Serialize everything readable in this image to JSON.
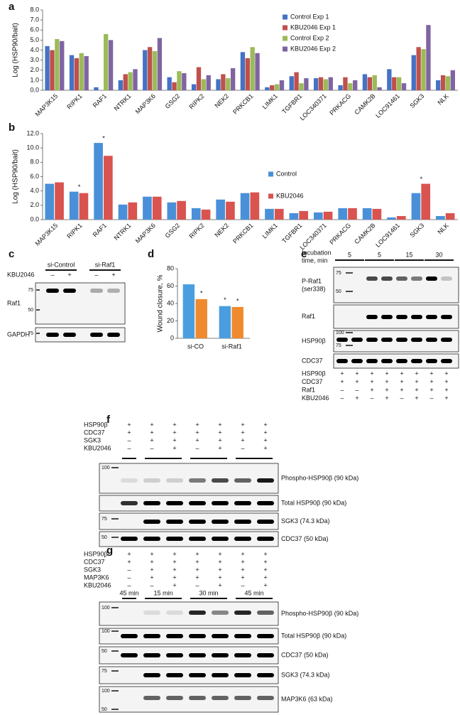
{
  "chart_data": [
    {
      "type": "bar",
      "label": "a",
      "ylabel": "Log (HSP90/bait)",
      "categories": [
        "MAP3K15",
        "RIPK1",
        "RAF1",
        "NTRK1",
        "MAP3K6",
        "GSG2",
        "RIPK2",
        "NEK2",
        "PRKCB1",
        "LIMK1",
        "TGFBR1",
        "LOC340371",
        "PRKACG",
        "CAMK2B",
        "LOC91461",
        "SGK3",
        "NLK"
      ],
      "series": [
        {
          "name": "Control Exp 1",
          "color": "#4472c4",
          "values": [
            4.4,
            3.5,
            0.3,
            1.0,
            4.0,
            1.3,
            0.6,
            1.1,
            3.8,
            0.3,
            1.4,
            1.2,
            0.5,
            1.6,
            2.1,
            3.5,
            1.0
          ]
        },
        {
          "name": "KBU2046 Exp 1",
          "color": "#c0504d",
          "values": [
            4.0,
            3.2,
            0,
            1.6,
            4.3,
            0.8,
            2.3,
            1.6,
            3.2,
            0.5,
            1.8,
            1.3,
            1.3,
            1.3,
            1.3,
            4.3,
            1.5
          ]
        },
        {
          "name": "Control Exp 2",
          "color": "#9bbb59",
          "values": [
            5.1,
            3.7,
            5.6,
            1.8,
            3.9,
            1.9,
            1.1,
            1.2,
            4.3,
            0.6,
            0.7,
            1.1,
            0.7,
            1.5,
            1.3,
            4.1,
            1.4
          ]
        },
        {
          "name": "KBU2046 Exp 2",
          "color": "#8064a2",
          "values": [
            4.9,
            3.4,
            5.0,
            2.1,
            5.2,
            1.7,
            1.5,
            2.2,
            3.7,
            1.0,
            1.2,
            1.3,
            1.0,
            0.3,
            0.7,
            6.5,
            2.0
          ]
        }
      ],
      "ylim": [
        0,
        8
      ],
      "yticks": [
        {
          "value": 0,
          "label": "0.0"
        },
        {
          "value": 1,
          "label": "1.0"
        },
        {
          "value": 2,
          "label": "2.0"
        },
        {
          "value": 3,
          "label": "3.0"
        },
        {
          "value": 4,
          "label": "4.0"
        },
        {
          "value": 5,
          "label": "5.0"
        },
        {
          "value": 6,
          "label": "6.0"
        },
        {
          "value": 7,
          "label": "7.0"
        },
        {
          "value": 8,
          "label": "8.0"
        }
      ]
    },
    {
      "type": "bar",
      "label": "b",
      "ylabel": "Log (HSP90/bait)",
      "categories": [
        "MAP3K15",
        "RIPK1",
        "RAF1",
        "NTRK1",
        "MAP3K6",
        "GSG2",
        "RIPK2",
        "NEK2",
        "PRKCB1",
        "LIMK1",
        "TGFBR1",
        "LOC340371",
        "PRKACG",
        "CAMK2B",
        "LOC91461",
        "SGK3",
        "NLK"
      ],
      "series": [
        {
          "name": "Control",
          "color": "#4a90d9",
          "values": [
            5.0,
            3.9,
            10.7,
            2.1,
            3.2,
            2.4,
            1.6,
            2.8,
            3.7,
            1.5,
            0.9,
            1.0,
            1.6,
            1.6,
            0.3,
            3.7,
            0.5
          ]
        },
        {
          "name": "KBU2046",
          "color": "#d9534f",
          "values": [
            5.2,
            3.7,
            8.9,
            2.4,
            3.2,
            2.6,
            1.4,
            2.5,
            3.8,
            1.5,
            1.2,
            1.1,
            1.6,
            1.5,
            0.5,
            5.0,
            0.9
          ]
        }
      ],
      "markers": [
        null,
        "*",
        "*",
        null,
        null,
        null,
        null,
        null,
        null,
        null,
        null,
        null,
        null,
        null,
        null,
        "*",
        null
      ],
      "ylim": [
        0,
        12
      ],
      "yticks": [
        {
          "value": 0,
          "label": "0.0"
        },
        {
          "value": 2,
          "label": "2.0"
        },
        {
          "value": 4,
          "label": "4.0"
        },
        {
          "value": 6,
          "label": "6.0"
        },
        {
          "value": 8,
          "label": "8.0"
        },
        {
          "value": 10,
          "label": "10.0"
        },
        {
          "value": 12,
          "label": "12.0"
        }
      ]
    },
    {
      "type": "bar",
      "label": "d",
      "ylabel": "Wound closure, %",
      "categories": [
        "si-CO",
        "si-Raf1"
      ],
      "series": [
        {
          "color": "#4a9ee0",
          "values": [
            62,
            37
          ],
          "markers": [
            null,
            "*"
          ]
        },
        {
          "color": "#f08a30",
          "values": [
            45,
            36
          ],
          "markers": [
            "*",
            "*"
          ]
        }
      ],
      "ylim": [
        0,
        80
      ],
      "yticks": [
        0,
        20,
        40,
        60,
        80
      ]
    }
  ],
  "panel_c": {
    "label": "c",
    "groups": [
      "si-Control",
      "si-Raf1"
    ],
    "conditions": [
      {
        "name": "KBU2046",
        "signs": [
          "–",
          "+",
          "–",
          "+"
        ]
      }
    ],
    "blots": [
      {
        "name": "Raf1",
        "mw": [
          75,
          50
        ]
      },
      {
        "name": "GAPDH",
        "mw": [
          75
        ]
      }
    ]
  },
  "panel_e": {
    "label": "e",
    "header": [
      "Incubation",
      "time, min"
    ],
    "time_labels": [
      5,
      5,
      15,
      30
    ],
    "conditions": [
      {
        "name": "HSP90β",
        "signs": [
          "+",
          "+",
          "+",
          "+",
          "+",
          "+",
          "+",
          "+"
        ]
      },
      {
        "name": "CDC37",
        "signs": [
          "+",
          "+",
          "+",
          "+",
          "+",
          "+",
          "+",
          "+"
        ]
      },
      {
        "name": "Raf1",
        "signs": [
          "–",
          "–",
          "+",
          "+",
          "+",
          "+",
          "+",
          "+"
        ]
      },
      {
        "name": "KBU2046",
        "signs": [
          "–",
          "+",
          "–",
          "+",
          "–",
          "+",
          "–",
          "+"
        ]
      }
    ],
    "blots": [
      {
        "name": [
          "P-Raf1",
          "(ser338)"
        ],
        "mw": [
          75,
          50
        ]
      },
      {
        "name": "Raf1",
        "mw": []
      },
      {
        "name": "HSP90β",
        "mw": [
          100,
          75
        ]
      },
      {
        "name": "CDC37",
        "mw": []
      }
    ]
  },
  "panel_f": {
    "label": "f",
    "conditions": [
      {
        "name": "HSP90β",
        "signs": [
          "+",
          "+",
          "+",
          "+",
          "+",
          "+",
          "+"
        ]
      },
      {
        "name": "CDC37",
        "signs": [
          "+",
          "+",
          "+",
          "+",
          "+",
          "+",
          "+"
        ]
      },
      {
        "name": "SGK3",
        "signs": [
          "–",
          "+",
          "+",
          "+",
          "+",
          "+",
          "+"
        ]
      },
      {
        "name": "KBU2046",
        "signs": [
          "–",
          "–",
          "+",
          "–",
          "+",
          "–",
          "+"
        ]
      }
    ],
    "blots": [
      {
        "name": "Phospho-HSP90β (90 kDa)",
        "mw": [
          100
        ]
      },
      {
        "name": "Total HSP90β (90 kDa)",
        "mw": []
      },
      {
        "name": "SGK3 (74.3 kDa)",
        "mw": [
          75
        ]
      },
      {
        "name": "CDC37 (50 kDa)",
        "mw": [
          50
        ]
      }
    ]
  },
  "panel_g": {
    "label": "g",
    "time_labels": [
      "45 min",
      "15 min",
      "30 min",
      "45 min"
    ],
    "conditions": [
      {
        "name": "HSP90β",
        "signs": [
          "+",
          "+",
          "+",
          "+",
          "+",
          "+",
          "+"
        ]
      },
      {
        "name": "CDC37",
        "signs": [
          "+",
          "+",
          "+",
          "+",
          "+",
          "+",
          "+"
        ]
      },
      {
        "name": "SGK3",
        "signs": [
          "–",
          "+",
          "+",
          "+",
          "+",
          "+",
          "+"
        ]
      },
      {
        "name": "MAP3K6",
        "signs": [
          "–",
          "+",
          "+",
          "+",
          "+",
          "+",
          "+"
        ]
      },
      {
        "name": "KBU2046",
        "signs": [
          "–",
          "–",
          "+",
          "–",
          "+",
          "–",
          "+"
        ]
      }
    ],
    "blots": [
      {
        "name": "Phospho-HSP90β (90 kDa)",
        "mw": [
          100
        ]
      },
      {
        "name": "Total HSP90β (90 kDa)",
        "mw": [
          100
        ]
      },
      {
        "name": "CDC37 (50 kDa)",
        "mw": [
          50
        ]
      },
      {
        "name": "SGK3 (74.3 kDa)",
        "mw": [
          75
        ]
      },
      {
        "name": "MAP3K6 (63 kDa)",
        "mw": [
          100,
          50
        ]
      }
    ]
  }
}
